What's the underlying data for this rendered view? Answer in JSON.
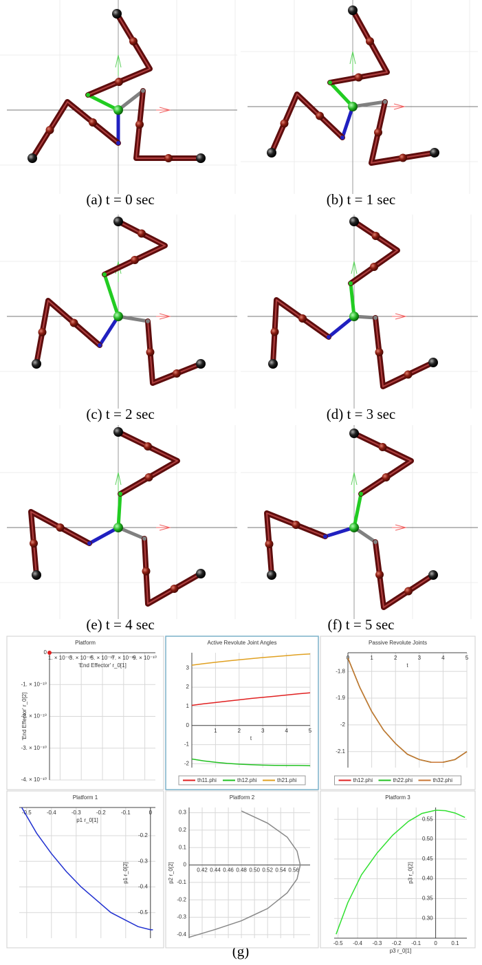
{
  "panels": [
    {
      "caption": "(a)  t = 0 sec"
    },
    {
      "caption": "(b)  t = 1 sec"
    },
    {
      "caption": "(c)  t = 2 sec"
    },
    {
      "caption": "(d)  t = 3 sec"
    },
    {
      "caption": "(e)  t = 4 sec"
    },
    {
      "caption": "(f)  t = 5 sec"
    }
  ],
  "figure_label": "(g)",
  "chart_data": [
    {
      "type": "scatter",
      "title": "Platform",
      "xlabel": "'End Effector' r_0[1]",
      "ylabel": "'End Effector' r_0[2]",
      "x": [
        0
      ],
      "series": [
        {
          "color": "#e02020",
          "values": [
            0
          ]
        }
      ],
      "xlim": [
        0,
        1e-09
      ],
      "ylim": [
        -4e-10,
        0
      ],
      "xticks": [
        {
          "value": 1e-10,
          "label": "1. × 10⁻¹⁰"
        },
        {
          "value": 3e-10,
          "label": "3. × 10⁻¹⁰"
        },
        {
          "value": 5e-10,
          "label": "5. × 10⁻¹⁰"
        },
        {
          "value": 7e-10,
          "label": "7. × 10⁻¹⁰"
        },
        {
          "value": 9e-10,
          "label": "9. × 10⁻¹⁰"
        }
      ],
      "yticks": [
        0,
        {
          "value": -1e-10,
          "label": "-1. × 10⁻¹⁰"
        },
        {
          "value": -2e-10,
          "label": "-2. × 10⁻¹⁰"
        },
        {
          "value": -3e-10,
          "label": "-3. × 10⁻¹⁰"
        },
        {
          "value": -4e-10,
          "label": "-4. × 10⁻¹⁰"
        }
      ]
    },
    {
      "type": "line",
      "title": "Active Revolute Joint Angles",
      "xlabel": "t",
      "x": [
        0,
        0.5,
        1,
        1.5,
        2,
        2.5,
        3,
        3.5,
        4,
        4.5,
        5
      ],
      "series": [
        {
          "name": "th11.phi",
          "color": "#e02020",
          "values": [
            1.05,
            1.13,
            1.2,
            1.27,
            1.34,
            1.41,
            1.47,
            1.53,
            1.59,
            1.65,
            1.71
          ]
        },
        {
          "name": "th12.phi",
          "color": "#20c020",
          "values": [
            -1.75,
            -1.85,
            -1.92,
            -1.98,
            -2.02,
            -2.05,
            -2.07,
            -2.08,
            -2.09,
            -2.09,
            -2.1
          ]
        },
        {
          "name": "th21.phi",
          "color": "#e0a020",
          "values": [
            3.15,
            3.23,
            3.3,
            3.37,
            3.43,
            3.49,
            3.55,
            3.6,
            3.65,
            3.7,
            3.74
          ]
        }
      ],
      "xlim": [
        0,
        5
      ],
      "ylim": [
        -2.2,
        3.8
      ],
      "xticks": [
        1,
        2,
        3,
        4,
        5
      ],
      "yticks": [
        -2,
        -1,
        0,
        1,
        2,
        3
      ]
    },
    {
      "type": "line",
      "title": "Passive Revolute Joints",
      "xlabel": "t",
      "x": [
        0,
        0.5,
        1,
        1.5,
        2,
        2.5,
        3,
        3.5,
        4,
        4.5,
        5
      ],
      "series": [
        {
          "name": "th12.phi",
          "color": "#e02020",
          "values": [
            -1.75,
            -1.86,
            -1.95,
            -2.02,
            -2.07,
            -2.11,
            -2.13,
            -2.14,
            -2.14,
            -2.13,
            -2.1
          ]
        },
        {
          "name": "th22.phi",
          "color": "#20c020",
          "values": [
            -1.75,
            -1.86,
            -1.95,
            -2.02,
            -2.07,
            -2.11,
            -2.13,
            -2.14,
            -2.14,
            -2.13,
            -2.1
          ]
        },
        {
          "name": "th32.phi",
          "color": "#c87533",
          "values": [
            -1.75,
            -1.86,
            -1.95,
            -2.02,
            -2.07,
            -2.11,
            -2.13,
            -2.14,
            -2.14,
            -2.13,
            -2.1
          ]
        }
      ],
      "xlim": [
        0,
        5
      ],
      "ylim": [
        -2.16,
        -1.73
      ],
      "xticks": [
        0,
        1,
        2,
        3,
        4,
        5
      ],
      "yticks": [
        -1.8,
        -1.9,
        -2,
        -2.1
      ]
    },
    {
      "type": "line",
      "title": "Platform 1",
      "xlabel": "p1 r_0[1]",
      "ylabel": "p1 r_0[2]",
      "x": [
        -0.52,
        -0.46,
        -0.4,
        -0.34,
        -0.28,
        -0.22,
        -0.16,
        -0.1,
        -0.05,
        0,
        0.01
      ],
      "series": [
        {
          "color": "#2030d0",
          "values": [
            -0.09,
            -0.19,
            -0.27,
            -0.34,
            -0.4,
            -0.45,
            -0.5,
            -0.53,
            -0.555,
            -0.567,
            -0.567
          ]
        }
      ],
      "xlim": [
        -0.53,
        0.02
      ],
      "ylim": [
        -0.6,
        -0.09
      ],
      "xticks": [
        -0.5,
        -0.4,
        -0.3,
        -0.2,
        -0.1,
        0
      ],
      "yticks": [
        -0.2,
        -0.3,
        -0.4,
        -0.5
      ]
    },
    {
      "type": "line",
      "title": "Platform 2",
      "ylabel": "p2 r_0[2]",
      "x": [
        0.48,
        0.52,
        0.55,
        0.565,
        0.57,
        0.565,
        0.55,
        0.52,
        0.48,
        0.44,
        0.4
      ],
      "series": [
        {
          "color": "#888888",
          "values": [
            0.31,
            0.24,
            0.16,
            0.08,
            0,
            -0.08,
            -0.16,
            -0.25,
            -0.32,
            -0.37,
            -0.415
          ]
        }
      ],
      "xlim": [
        0.4,
        0.585
      ],
      "ylim": [
        -0.42,
        0.33
      ],
      "xticks": [
        0.42,
        0.44,
        0.46,
        0.48,
        {
          "value": 0.5,
          "label": "0.50"
        },
        0.52,
        0.54,
        0.56
      ],
      "yticks": [
        0.3,
        0.2,
        0.1,
        0,
        -0.1,
        -0.2,
        -0.3,
        -0.4
      ]
    },
    {
      "type": "line",
      "title": "Platform 3",
      "xlabel": "p3 r_0[1]",
      "ylabel": "p3 r_0[2]",
      "x": [
        -0.51,
        -0.45,
        -0.38,
        -0.3,
        -0.22,
        -0.14,
        -0.07,
        0,
        0.05,
        0.1,
        0.15
      ],
      "series": [
        {
          "color": "#30e030",
          "values": [
            0.26,
            0.34,
            0.41,
            0.465,
            0.51,
            0.545,
            0.565,
            0.573,
            0.572,
            0.566,
            0.555
          ]
        }
      ],
      "xlim": [
        -0.52,
        0.16
      ],
      "ylim": [
        0.25,
        0.58
      ],
      "xticks": [
        -0.5,
        -0.4,
        -0.3,
        -0.2,
        -0.1,
        0,
        0.1
      ],
      "yticks": [
        {
          "value": 0.3,
          "label": "0.30"
        },
        0.35,
        {
          "value": 0.4,
          "label": "0.40"
        },
        0.45,
        {
          "value": 0.5,
          "label": "0.50"
        },
        0.55
      ]
    }
  ]
}
